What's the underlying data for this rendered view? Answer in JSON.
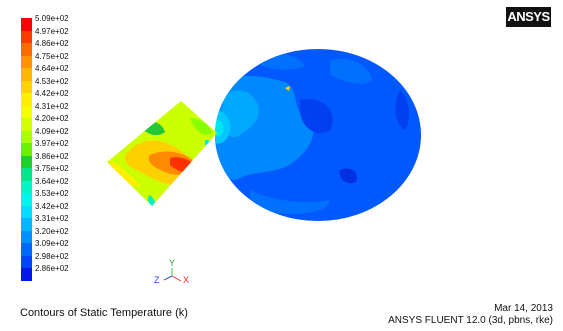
{
  "legend": {
    "labels": [
      "5.09e+02",
      "4.97e+02",
      "4.86e+02",
      "4.75e+02",
      "4.64e+02",
      "4.53e+02",
      "4.42e+02",
      "4.31e+02",
      "4.20e+02",
      "4.09e+02",
      "3.97e+02",
      "3.86e+02",
      "3.75e+02",
      "3.64e+02",
      "3.53e+02",
      "3.42e+02",
      "3.31e+02",
      "3.20e+02",
      "3.09e+02",
      "2.98e+02",
      "2.86e+02"
    ],
    "colors": [
      "#ff0000",
      "#ff3a00",
      "#ff6a00",
      "#ff9300",
      "#ffb800",
      "#ffd200",
      "#ffee00",
      "#f5ff00",
      "#d4ff00",
      "#aaff00",
      "#6cf000",
      "#1fd02f",
      "#00e68a",
      "#00f7c4",
      "#00f5ee",
      "#00ddff",
      "#00b8ff",
      "#0090ff",
      "#0068ff",
      "#0044ff",
      "#0018ee"
    ]
  },
  "axes": {
    "x": "X",
    "y": "Y",
    "z": "Z"
  },
  "logo": {
    "text": "ANSYS"
  },
  "footer": {
    "caption": "Contours of Static Temperature (k)",
    "date": "Mar 14, 2013",
    "version": "ANSYS FLUENT 12.0 (3d, pbns, rke)"
  }
}
